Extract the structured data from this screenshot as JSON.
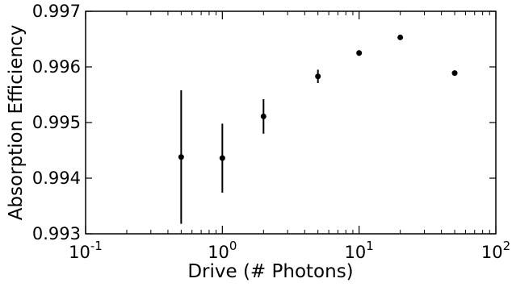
{
  "chart_data": {
    "type": "scatter",
    "xlabel": "Drive (# Photons)",
    "ylabel": "Absorption Efficiency",
    "xscale": "log",
    "xlim": [
      0.1,
      100
    ],
    "ylim": [
      0.993,
      0.997
    ],
    "grid": false,
    "legend": "none",
    "marker_color": "#000000",
    "x_ticks": [
      {
        "base": "10",
        "exp": "-1"
      },
      {
        "base": "10",
        "exp": "0"
      },
      {
        "base": "10",
        "exp": "1"
      },
      {
        "base": "10",
        "exp": "2"
      }
    ],
    "y_ticks": [
      "0.993",
      "0.994",
      "0.995",
      "0.996",
      "0.997"
    ],
    "series": [
      {
        "points": [
          {
            "x": 0.5,
            "y": 0.99438,
            "err": 0.0012
          },
          {
            "x": 1,
            "y": 0.99436,
            "err": 0.00062
          },
          {
            "x": 2,
            "y": 0.99511,
            "err": 0.00031
          },
          {
            "x": 5,
            "y": 0.99583,
            "err": 0.00012
          },
          {
            "x": 10,
            "y": 0.99625,
            "err": 5e-05
          },
          {
            "x": 20,
            "y": 0.99653,
            "err": 0.0
          },
          {
            "x": 50,
            "y": 0.99589,
            "err": 0.0
          }
        ]
      }
    ]
  }
}
